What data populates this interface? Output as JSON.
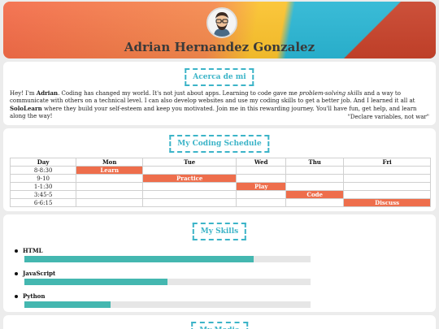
{
  "header": {
    "name": "Adrian Hernandez Gonzalez",
    "avatar_icon": "developer-avatar-icon"
  },
  "about": {
    "title": "Acerca de mi",
    "text_prefix": "Hey! I'm ",
    "name_bold": "Adrian",
    "text_1": ". Coding has changed my world. It's not just about apps. Learning to code gave me ",
    "italic": "problem-solving skills",
    "text_2": " and a way to communicate with others on a technical level. I can also develop websites and use my coding skills to get a better job. And I learned it all at ",
    "sololearn": "SoloLearn",
    "text_3": " where they build your self-esteem and keep you motivated. Join me in this rewarding journey. You'll have fun, get help, and learn along the way!",
    "quote": "\"Declare variables, not war\""
  },
  "schedule": {
    "title": "My Coding Schedule",
    "headers": [
      "Day",
      "Mon",
      "Tue",
      "Wed",
      "Thu",
      "Fri"
    ],
    "rows": [
      {
        "time": "8-8:30",
        "cells": [
          "Learn",
          "",
          "",
          "",
          ""
        ]
      },
      {
        "time": "9-10",
        "cells": [
          "",
          "Practice",
          "",
          "",
          ""
        ]
      },
      {
        "time": "1-1:30",
        "cells": [
          "",
          "",
          "Play",
          "",
          ""
        ]
      },
      {
        "time": "3:45-5",
        "cells": [
          "",
          "",
          "",
          "Code",
          ""
        ]
      },
      {
        "time": "6-6:15",
        "cells": [
          "",
          "",
          "",
          "",
          "Discuss"
        ]
      }
    ]
  },
  "skills": {
    "title": "My Skills",
    "items": [
      {
        "name": "HTML",
        "level": 0.8
      },
      {
        "name": "JavaScript",
        "level": 0.5
      },
      {
        "name": "Python",
        "level": 0.3
      }
    ],
    "colors": {
      "fill": "#44b7b0",
      "track": "#e6e6e6"
    }
  },
  "media": {
    "title": "My Media"
  },
  "colors": {
    "accent": "#3cb4c8",
    "highlight": "#ee6e4c"
  }
}
